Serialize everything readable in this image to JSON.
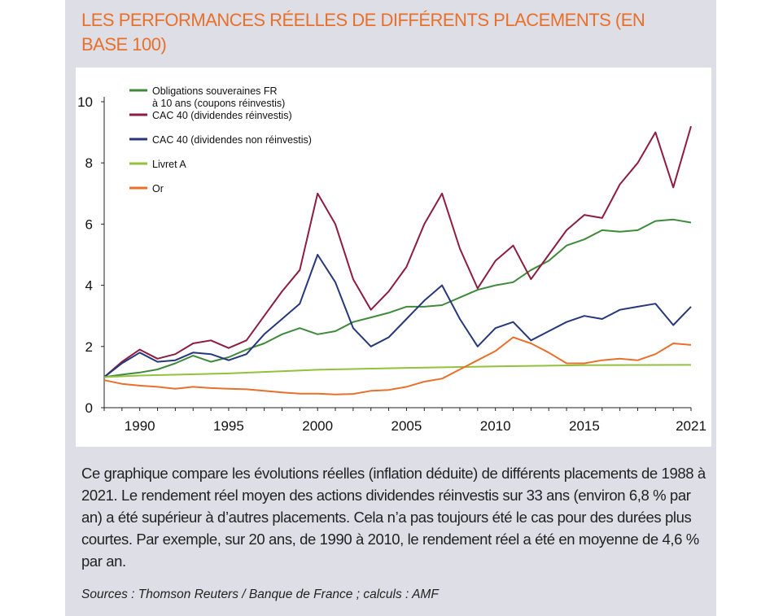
{
  "title": "LES PERFORMANCES RÉELLES DE DIFFÉRENTS PLACEMENTS (EN BASE 100)",
  "caption": "Ce graphique compare les évolutions réelles (inflation déduite) de différents placements de 1988 à 2021. Le rendement réel moyen des actions dividendes réinvestis sur 33 ans (environ 6,8 % par an) a été supérieur à d’autres placements. Cela n’a pas toujours été le cas pour des durées plus courtes. Par exemple, sur 20 ans, de 1990 à 2010, le rendement réel a été en moyenne de 4,6 % par an.",
  "source": "Sources : Thomson Reuters / Banque de France ; calculs : AMF",
  "chart_data": {
    "type": "line",
    "title": "LES PERFORMANCES RÉELLES DE DIFFÉRENTS PLACEMENTS (EN BASE 100)",
    "xlabel": "",
    "ylabel": "",
    "xlim": [
      1988,
      2021
    ],
    "ylim": [
      0,
      10
    ],
    "x_ticks": [
      1990,
      1995,
      2000,
      2005,
      2010,
      2015,
      2021
    ],
    "y_ticks": [
      0,
      2,
      4,
      6,
      8,
      10
    ],
    "grid": false,
    "legend_position": "top-left",
    "series": [
      {
        "name": "Obligations souveraines FR à 10 ans (coupons réinvestis)",
        "color": "#3f8a3a",
        "points": [
          [
            1988,
            1.0
          ],
          [
            1989,
            1.08
          ],
          [
            1990,
            1.15
          ],
          [
            1991,
            1.25
          ],
          [
            1992,
            1.45
          ],
          [
            1993,
            1.7
          ],
          [
            1994,
            1.5
          ],
          [
            1995,
            1.65
          ],
          [
            1996,
            1.9
          ],
          [
            1997,
            2.1
          ],
          [
            1998,
            2.4
          ],
          [
            1999,
            2.6
          ],
          [
            2000,
            2.4
          ],
          [
            2001,
            2.5
          ],
          [
            2002,
            2.8
          ],
          [
            2003,
            2.95
          ],
          [
            2004,
            3.1
          ],
          [
            2005,
            3.3
          ],
          [
            2006,
            3.3
          ],
          [
            2007,
            3.35
          ],
          [
            2008,
            3.6
          ],
          [
            2009,
            3.85
          ],
          [
            2010,
            4.0
          ],
          [
            2011,
            4.1
          ],
          [
            2012,
            4.5
          ],
          [
            2013,
            4.8
          ],
          [
            2014,
            5.3
          ],
          [
            2015,
            5.5
          ],
          [
            2016,
            5.8
          ],
          [
            2017,
            5.75
          ],
          [
            2018,
            5.8
          ],
          [
            2019,
            6.1
          ],
          [
            2020,
            6.15
          ],
          [
            2021,
            6.05
          ]
        ]
      },
      {
        "name": "CAC 40 (dividendes réinvestis)",
        "color": "#8c1d40",
        "points": [
          [
            1988,
            1.0
          ],
          [
            1989,
            1.5
          ],
          [
            1990,
            1.9
          ],
          [
            1991,
            1.6
          ],
          [
            1992,
            1.75
          ],
          [
            1993,
            2.1
          ],
          [
            1994,
            2.2
          ],
          [
            1995,
            1.95
          ],
          [
            1996,
            2.2
          ],
          [
            1997,
            3.0
          ],
          [
            1998,
            3.8
          ],
          [
            1999,
            4.5
          ],
          [
            2000,
            7.0
          ],
          [
            2001,
            6.0
          ],
          [
            2002,
            4.2
          ],
          [
            2003,
            3.2
          ],
          [
            2004,
            3.8
          ],
          [
            2005,
            4.6
          ],
          [
            2006,
            6.0
          ],
          [
            2007,
            7.0
          ],
          [
            2008,
            5.2
          ],
          [
            2009,
            3.9
          ],
          [
            2010,
            4.8
          ],
          [
            2011,
            5.3
          ],
          [
            2012,
            4.2
          ],
          [
            2013,
            5.0
          ],
          [
            2014,
            5.8
          ],
          [
            2015,
            6.3
          ],
          [
            2016,
            6.2
          ],
          [
            2017,
            7.3
          ],
          [
            2018,
            8.0
          ],
          [
            2019,
            9.0
          ],
          [
            2020,
            7.2
          ],
          [
            2021,
            9.2
          ]
        ]
      },
      {
        "name": "CAC 40 (dividendes non réinvestis)",
        "color": "#27387a",
        "points": [
          [
            1988,
            1.0
          ],
          [
            1989,
            1.45
          ],
          [
            1990,
            1.8
          ],
          [
            1991,
            1.5
          ],
          [
            1992,
            1.55
          ],
          [
            1993,
            1.8
          ],
          [
            1994,
            1.75
          ],
          [
            1995,
            1.55
          ],
          [
            1996,
            1.75
          ],
          [
            1997,
            2.4
          ],
          [
            1998,
            2.9
          ],
          [
            1999,
            3.4
          ],
          [
            2000,
            5.0
          ],
          [
            2001,
            4.1
          ],
          [
            2002,
            2.6
          ],
          [
            2003,
            2.0
          ],
          [
            2004,
            2.3
          ],
          [
            2005,
            2.9
          ],
          [
            2006,
            3.5
          ],
          [
            2007,
            4.0
          ],
          [
            2008,
            2.9
          ],
          [
            2009,
            2.0
          ],
          [
            2010,
            2.6
          ],
          [
            2011,
            2.8
          ],
          [
            2012,
            2.2
          ],
          [
            2013,
            2.5
          ],
          [
            2014,
            2.8
          ],
          [
            2015,
            3.0
          ],
          [
            2016,
            2.9
          ],
          [
            2017,
            3.2
          ],
          [
            2018,
            3.3
          ],
          [
            2019,
            3.4
          ],
          [
            2020,
            2.7
          ],
          [
            2021,
            3.3
          ]
        ]
      },
      {
        "name": "Livret A",
        "color": "#93c13d",
        "points": [
          [
            1988,
            1.0
          ],
          [
            1990,
            1.05
          ],
          [
            1995,
            1.12
          ],
          [
            2000,
            1.24
          ],
          [
            2005,
            1.3
          ],
          [
            2010,
            1.35
          ],
          [
            2015,
            1.39
          ],
          [
            2021,
            1.4
          ]
        ]
      },
      {
        "name": "Or",
        "color": "#e8702a",
        "points": [
          [
            1988,
            0.9
          ],
          [
            1989,
            0.78
          ],
          [
            1990,
            0.72
          ],
          [
            1991,
            0.68
          ],
          [
            1992,
            0.62
          ],
          [
            1993,
            0.68
          ],
          [
            1994,
            0.64
          ],
          [
            1995,
            0.62
          ],
          [
            1996,
            0.6
          ],
          [
            1997,
            0.55
          ],
          [
            1998,
            0.5
          ],
          [
            1999,
            0.46
          ],
          [
            2000,
            0.46
          ],
          [
            2001,
            0.43
          ],
          [
            2002,
            0.45
          ],
          [
            2003,
            0.55
          ],
          [
            2004,
            0.58
          ],
          [
            2005,
            0.68
          ],
          [
            2006,
            0.85
          ],
          [
            2007,
            0.95
          ],
          [
            2008,
            1.25
          ],
          [
            2009,
            1.55
          ],
          [
            2010,
            1.85
          ],
          [
            2011,
            2.3
          ],
          [
            2012,
            2.1
          ],
          [
            2013,
            1.8
          ],
          [
            2014,
            1.45
          ],
          [
            2015,
            1.45
          ],
          [
            2016,
            1.55
          ],
          [
            2017,
            1.6
          ],
          [
            2018,
            1.55
          ],
          [
            2019,
            1.75
          ],
          [
            2020,
            2.1
          ],
          [
            2021,
            2.05
          ]
        ]
      }
    ]
  }
}
